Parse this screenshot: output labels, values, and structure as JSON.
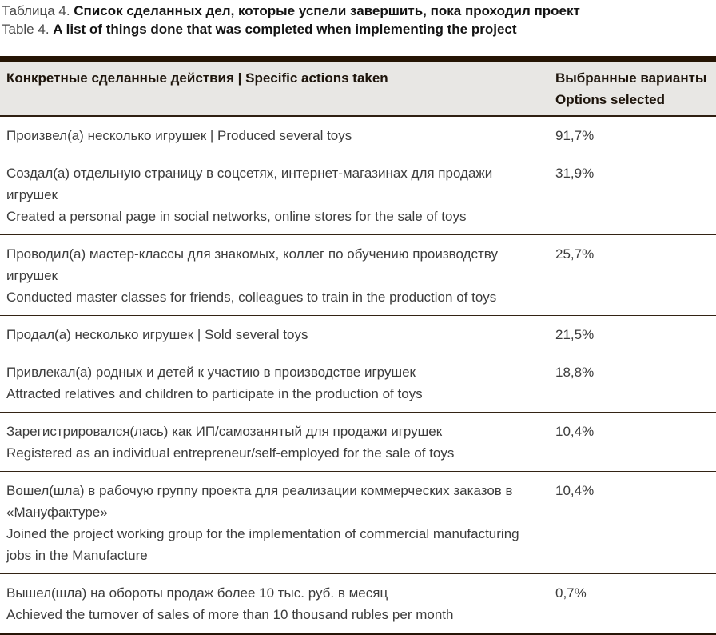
{
  "caption": {
    "ru_prefix": "Таблица 4. ",
    "ru_title": "Список сделанных дел, которые успели завершить, пока проходил проект",
    "en_prefix": "Table 4. ",
    "en_title": "A list of things done that was completed when implementing the project"
  },
  "table": {
    "header": {
      "actions": "Конкретные сделанные действия | Specific actions taken",
      "options_ru": "Выбранные варианты",
      "options_en": "Options selected"
    },
    "rows": [
      {
        "lines": [
          "Произвел(а) несколько игрушек | Produced several toys"
        ],
        "value": "91,7%"
      },
      {
        "lines": [
          "Создал(а) отдельную страницу в соцсетях, интернет-магазинах для продажи игрушек",
          "Created a personal page in social networks, online stores for the sale of toys"
        ],
        "value": "31,9%"
      },
      {
        "lines": [
          "Проводил(а) мастер-классы для знакомых, коллег по обучению производству игрушек",
          "Conducted master classes for friends, colleagues to train in the production of toys"
        ],
        "value": "25,7%"
      },
      {
        "lines": [
          "Продал(а) несколько игрушек | Sold several toys"
        ],
        "value": "21,5%"
      },
      {
        "lines": [
          "Привлекал(а) родных и детей к участию в производстве игрушек",
          "Attracted relatives and children to participate in the production of toys"
        ],
        "value": "18,8%"
      },
      {
        "lines": [
          "Зарегистрировался(лась) как ИП/самозанятый для продажи игрушек",
          "Registered as an individual entrepreneur/self-employed for the sale of toys"
        ],
        "value": "10,4%"
      },
      {
        "lines": [
          "Вошел(шла) в рабочую группу проекта для реализации коммерческих заказов в «Мануфактуре»",
          "Joined the project working group for the implementation of commercial manufacturing jobs in the Manufacture"
        ],
        "value": "10,4%"
      },
      {
        "lines": [
          "Вышел(шла) на обороты продаж более 10 тыс. руб. в месяц",
          "Achieved the turnover of sales of more than 10 thousand rubles per month"
        ],
        "value": "0,7%"
      }
    ]
  },
  "chart_data": {
    "type": "table",
    "title": "Таблица 4. Список сделанных дел, которые успели завершить, пока проходил проект / Table 4. A list of things done that was completed when implementing the project",
    "categories": [
      "Произвел(а) несколько игрушек / Produced several toys",
      "Создал(а) отдельную страницу в соцсетях, интернет-магазинах для продажи игрушек / Created a personal page in social networks, online stores for the sale of toys",
      "Проводил(а) мастер-классы для знакомых, коллег по обучению производству игрушек / Conducted master classes for friends, colleagues to train in the production of toys",
      "Продал(а) несколько игрушек / Sold several toys",
      "Привлекал(а) родных и детей к участию в производстве игрушек / Attracted relatives and children to participate in the production of toys",
      "Зарегистрировался(лась) как ИП/самозанятый для продажи игрушек / Registered as an individual entrepreneur/self-employed for the sale of toys",
      "Вошел(шла) в рабочую группу проекта для реализации коммерческих заказов в «Мануфактуре» / Joined the project working group for the implementation of commercial manufacturing jobs in the Manufacture",
      "Вышел(шла) на обороты продаж более 10 тыс. руб. в месяц / Achieved the turnover of sales of more than 10 thousand rubles per month"
    ],
    "values_percent": [
      91.7,
      31.9,
      25.7,
      21.5,
      18.8,
      10.4,
      10.4,
      0.7
    ]
  },
  "colors": {
    "top_border": "#251504",
    "header_background": "#e8e7e4",
    "row_separator": "#332314",
    "bottom_border": "#271607",
    "body_text": "#3d3d3d",
    "caption_prefix_text": "#4b4b4b",
    "caption_bold_text": "#141414"
  }
}
